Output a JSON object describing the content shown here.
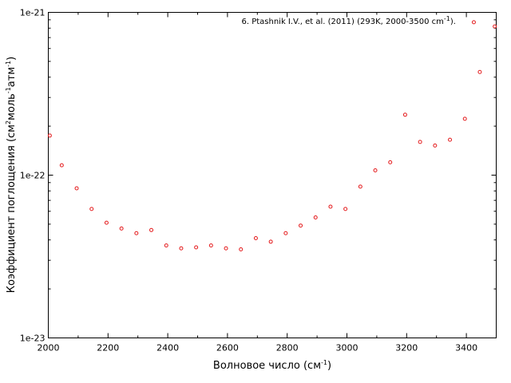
{
  "chart_data": {
    "type": "scatter",
    "x_scale": "linear",
    "y_scale": "log",
    "xlim": [
      2000,
      3500
    ],
    "ylim": [
      1e-23,
      1e-21
    ],
    "x_ticks": [
      2000,
      2200,
      2400,
      2600,
      2800,
      3000,
      3200,
      3400
    ],
    "x_tick_labels": [
      "2000",
      "2200",
      "2400",
      "2600",
      "2800",
      "3000",
      "3200",
      "3400"
    ],
    "y_ticks": [
      1e-23,
      1e-22,
      1e-21
    ],
    "y_tick_labels": [
      "1e-23",
      "1e-22",
      "1e-21"
    ],
    "xlabel": {
      "text": "Волновое число (см",
      "sup": "-1",
      "tail": ")"
    },
    "ylabel": {
      "p1": "Коэффициент поглощения (см",
      "s1": "2",
      "p2": "моль",
      "s2": "-1",
      "p3": "атм",
      "s3": "-1",
      "p4": ")"
    },
    "legend": {
      "placement": "top-right",
      "text": "6. Ptashnik I.V., et al. (2011) (293K, 2000-3500 cm",
      "sup": "-1",
      "tail": ")."
    },
    "grid": false,
    "series": [
      {
        "marker": "open-circle",
        "color": "#e41a1c",
        "x": [
          2005,
          2045,
          2095,
          2145,
          2195,
          2245,
          2295,
          2345,
          2395,
          2445,
          2495,
          2545,
          2595,
          2645,
          2695,
          2745,
          2795,
          2845,
          2895,
          2945,
          2995,
          3045,
          3095,
          3145,
          3195,
          3245,
          3295,
          3345,
          3395,
          3425,
          3445,
          3495
        ],
        "y": [
          1.75e-22,
          1.15e-22,
          8.3e-23,
          6.2e-23,
          5.1e-23,
          4.7e-23,
          4.4e-23,
          4.6e-23,
          3.7e-23,
          3.55e-23,
          3.6e-23,
          3.7e-23,
          3.55e-23,
          3.5e-23,
          4.1e-23,
          3.9e-23,
          4.4e-23,
          4.9e-23,
          5.5e-23,
          6.4e-23,
          6.2e-23,
          8.5e-23,
          1.07e-22,
          1.2e-22,
          2.35e-22,
          1.6e-22,
          1.52e-22,
          1.65e-22,
          2.22e-22,
          8.7e-22,
          4.3e-22,
          8.2e-22
        ]
      }
    ]
  }
}
